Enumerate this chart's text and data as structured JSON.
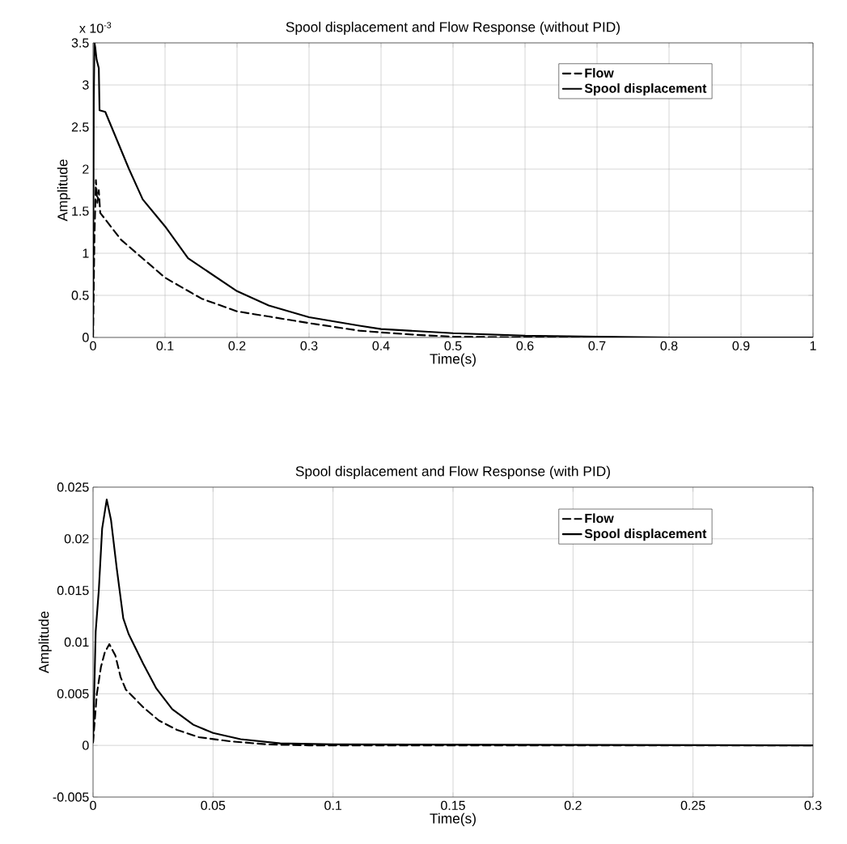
{
  "chart_data": [
    {
      "type": "line",
      "title": "Spool displacement and Flow Response (without PID)",
      "xlabel": "Time(s)",
      "ylabel": "Amplitude",
      "annotations": [
        "x 10$^{-3}$"
      ],
      "xlim": [
        0,
        1
      ],
      "ylim": [
        0,
        3.5
      ],
      "xticks": [
        0,
        0.1,
        0.2,
        0.3,
        0.4,
        0.5,
        0.6,
        0.7,
        0.8,
        0.9,
        1
      ],
      "yticks": [
        0,
        0.5,
        1,
        1.5,
        2,
        2.5,
        3,
        3.5
      ],
      "grid": true,
      "legend": "top right",
      "series": [
        {
          "name": "Flow",
          "color": "#000000",
          "line_style": "dashed",
          "x": [
            0,
            0.002,
            0.004,
            0.006,
            0.008,
            0.01,
            0.039,
            0.1,
            0.151,
            0.2,
            0.3,
            0.37,
            0.4,
            0.45,
            0.5,
            0.6,
            0.8,
            1
          ],
          "values": [
            0,
            1.2,
            1.87,
            1.6,
            1.75,
            1.48,
            1.16,
            0.71,
            0.46,
            0.31,
            0.17,
            0.08,
            0.06,
            0.03,
            0.01,
            0,
            0,
            0
          ]
        },
        {
          "name": "Spool displacement",
          "color": "#000000",
          "line_style": "solid",
          "x": [
            0,
            0.001,
            0.002,
            0.003,
            0.005,
            0.008,
            0.009,
            0.017,
            0.05,
            0.069,
            0.1,
            0.132,
            0.2,
            0.244,
            0.3,
            0.37,
            0.4,
            0.5,
            0.6,
            0.7,
            0.8,
            1
          ],
          "values": [
            0,
            2.8,
            3.5,
            3.45,
            3.3,
            3.2,
            2.7,
            2.68,
            2.0,
            1.64,
            1.32,
            0.94,
            0.55,
            0.38,
            0.24,
            0.14,
            0.1,
            0.05,
            0.02,
            0.01,
            0,
            0
          ]
        }
      ]
    },
    {
      "type": "line",
      "title": "Spool displacement and Flow Response (with PID)",
      "xlabel": "Time(s)",
      "ylabel": "Amplitude",
      "xlim": [
        0,
        0.3
      ],
      "ylim": [
        -0.005,
        0.025
      ],
      "xticks": [
        0,
        0.05,
        0.1,
        0.15,
        0.2,
        0.25,
        0.3
      ],
      "yticks": [
        -0.005,
        0,
        0.005,
        0.01,
        0.015,
        0.02,
        0.025
      ],
      "grid": true,
      "legend": "top right",
      "series": [
        {
          "name": "Flow",
          "color": "#000000",
          "line_style": "dashed",
          "x": [
            0,
            0.0016,
            0.0033,
            0.0049,
            0.0068,
            0.0093,
            0.0115,
            0.0137,
            0.0209,
            0.0275,
            0.035,
            0.044,
            0.057,
            0.0725,
            0.09,
            0.3
          ],
          "values": [
            0.0003,
            0.005,
            0.0076,
            0.009,
            0.0098,
            0.0087,
            0.0066,
            0.0054,
            0.0037,
            0.0024,
            0.0015,
            0.0008,
            0.0004,
            0.0001,
            0,
            0
          ]
        },
        {
          "name": "Spool displacement",
          "color": "#000000",
          "line_style": "solid",
          "x": [
            0,
            0.0011,
            0.0024,
            0.0038,
            0.0057,
            0.0075,
            0.0099,
            0.0126,
            0.0148,
            0.0209,
            0.0264,
            0.033,
            0.0418,
            0.05,
            0.0615,
            0.078,
            0.1,
            0.3
          ],
          "values": [
            0.0003,
            0.011,
            0.015,
            0.021,
            0.0238,
            0.0218,
            0.0171,
            0.0123,
            0.0108,
            0.0079,
            0.0055,
            0.0035,
            0.002,
            0.0012,
            0.0006,
            0.0002,
            0.0001,
            0
          ]
        }
      ]
    }
  ]
}
